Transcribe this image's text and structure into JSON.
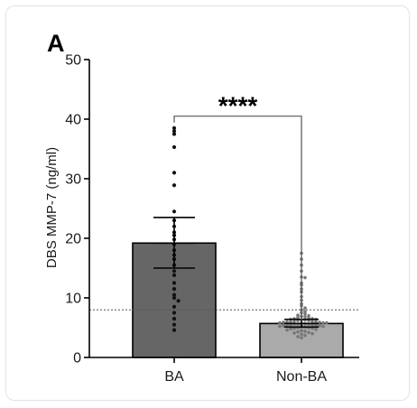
{
  "chart_data": {
    "type": "bar",
    "panel_label": "A",
    "ylabel": "DBS MMP-7 (ng/ml)",
    "xlabel": "",
    "ylim": [
      0,
      50
    ],
    "yticks": [
      "0",
      "10",
      "20",
      "30",
      "40",
      "50"
    ],
    "categories": [
      "BA",
      "Non-BA"
    ],
    "values": [
      19.2,
      5.7
    ],
    "error_bars": [
      {
        "lower": 15.0,
        "upper": 23.5
      },
      {
        "lower": 5.1,
        "upper": 6.4
      }
    ],
    "bar_colors": [
      "#666666",
      "#aaaaaa"
    ],
    "point_colors": [
      "#111111",
      "#777777"
    ],
    "reference_line": {
      "value": 8.0,
      "style": "dotted"
    },
    "significance": {
      "label": "****",
      "between": [
        "BA",
        "Non-BA"
      ],
      "bracket_top": 40.5
    },
    "points": [
      [
        38.5,
        38.0,
        37.5,
        35.3,
        31.0,
        28.9,
        24.5,
        23.0,
        22.0,
        21.0,
        20.5,
        19.8,
        19.0,
        18.0,
        17.2,
        16.5,
        15.5,
        14.5,
        13.8,
        12.5,
        11.5,
        10.5,
        10.0,
        9.5,
        8.5,
        7.5,
        6.5,
        5.5,
        4.6
      ],
      [
        17.5,
        16.5,
        15.5,
        14.5,
        13.5,
        13.4,
        12.5,
        12.2,
        11.5,
        11.0,
        10.2,
        9.6,
        9.0,
        8.7,
        8.3,
        8.0,
        7.7,
        7.5,
        7.3,
        7.1,
        7.0,
        6.9,
        6.8,
        6.7,
        6.6,
        6.5,
        6.5,
        6.4,
        6.4,
        6.3,
        6.3,
        6.2,
        6.2,
        6.1,
        6.1,
        6.0,
        6.0,
        6.0,
        5.9,
        5.9,
        5.8,
        5.8,
        5.8,
        5.7,
        5.7,
        5.6,
        5.6,
        5.6,
        5.5,
        5.5,
        5.4,
        5.4,
        5.3,
        5.3,
        5.2,
        5.2,
        5.1,
        5.1,
        5.0,
        5.0,
        4.9,
        4.9,
        4.8,
        4.7,
        4.6,
        4.5,
        4.4,
        4.3,
        4.2,
        4.1,
        4.0,
        3.9,
        3.7,
        3.5,
        3.3
      ]
    ]
  }
}
